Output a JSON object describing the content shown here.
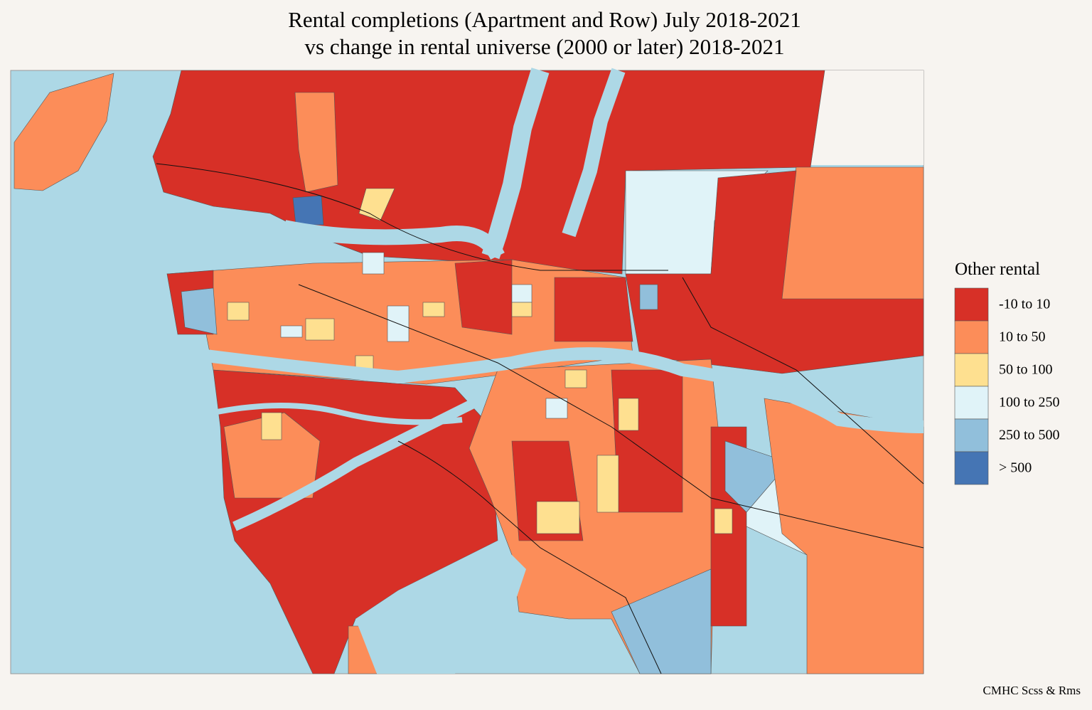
{
  "title": [
    "Rental completions (Apartment and Row) July 2018-2021",
    "vs change in rental universe (2000 or later) 2018-2021"
  ],
  "legend": {
    "title": "Other rental",
    "items": [
      {
        "label": "-10 to 10",
        "color": "#d73027"
      },
      {
        "label": "10 to 50",
        "color": "#fc8d59"
      },
      {
        "label": "50 to 100",
        "color": "#fee090"
      },
      {
        "label": "100 to 250",
        "color": "#e0f3f8"
      },
      {
        "label": "250 to 500",
        "color": "#91bfdb"
      },
      {
        "label": "> 500",
        "color": "#4575b4"
      }
    ]
  },
  "caption": "CMHC Scss & Rms"
}
